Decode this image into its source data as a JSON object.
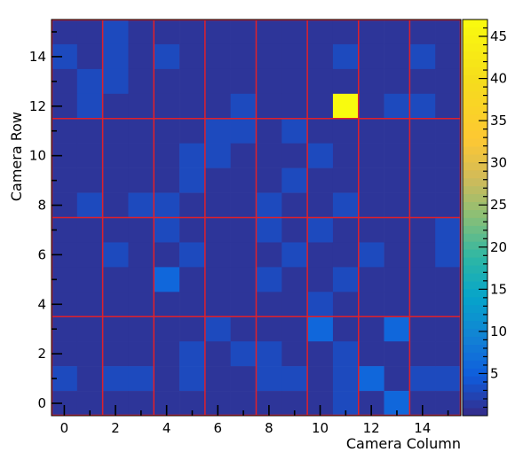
{
  "chart_data": {
    "type": "heatmap",
    "xlabel": "Camera Column",
    "ylabel": "Camera Row",
    "x_ticks": [
      0,
      2,
      4,
      6,
      8,
      10,
      12,
      14
    ],
    "y_ticks": [
      0,
      2,
      4,
      6,
      8,
      10,
      12,
      14
    ],
    "xlim": [
      -0.5,
      15.5
    ],
    "ylim": [
      -0.5,
      15.5
    ],
    "zlim": [
      0,
      47
    ],
    "z_ticks": [
      5,
      10,
      15,
      20,
      25,
      30,
      35,
      40,
      45
    ],
    "colormap": "parula",
    "grid": "red lines every 2 columns and every 4 rows",
    "grid_color": "#e0202a",
    "rows_top_to_bottom": [
      [
        1,
        1,
        3,
        1,
        1,
        1,
        1,
        1,
        1,
        1,
        1,
        1,
        1,
        1,
        1,
        1
      ],
      [
        3,
        1,
        3,
        1,
        3,
        1,
        1,
        1,
        1,
        1,
        1,
        3,
        1,
        1,
        3,
        1
      ],
      [
        1,
        3,
        3,
        1,
        1,
        1,
        1,
        1,
        1,
        1,
        1,
        1,
        1,
        1,
        1,
        1
      ],
      [
        1,
        3,
        1,
        1,
        1,
        1,
        1,
        3,
        1,
        1,
        1,
        47,
        1,
        3,
        3,
        1
      ],
      [
        1,
        1,
        1,
        1,
        1,
        1,
        3,
        3,
        1,
        3,
        1,
        1,
        1,
        1,
        1,
        1
      ],
      [
        1,
        1,
        1,
        1,
        1,
        3,
        3,
        1,
        1,
        1,
        3,
        1,
        1,
        1,
        1,
        1
      ],
      [
        1,
        1,
        1,
        1,
        1,
        3,
        1,
        1,
        1,
        3,
        1,
        1,
        1,
        1,
        1,
        1
      ],
      [
        1,
        3,
        1,
        3,
        3,
        1,
        1,
        1,
        3,
        1,
        1,
        3,
        1,
        1,
        1,
        1
      ],
      [
        1,
        1,
        1,
        1,
        3,
        1,
        1,
        1,
        3,
        1,
        3,
        1,
        1,
        1,
        1,
        3
      ],
      [
        1,
        1,
        3,
        1,
        1,
        3,
        1,
        1,
        1,
        3,
        1,
        1,
        3,
        1,
        1,
        3
      ],
      [
        1,
        1,
        1,
        1,
        6,
        1,
        1,
        1,
        3,
        1,
        1,
        3,
        1,
        1,
        1,
        1
      ],
      [
        1,
        1,
        1,
        1,
        1,
        1,
        1,
        1,
        1,
        1,
        3,
        1,
        1,
        1,
        1,
        1
      ],
      [
        1,
        1,
        1,
        1,
        1,
        1,
        3,
        1,
        1,
        1,
        6,
        1,
        1,
        6,
        1,
        1
      ],
      [
        1,
        1,
        1,
        1,
        1,
        3,
        1,
        3,
        3,
        1,
        1,
        3,
        1,
        1,
        1,
        1
      ],
      [
        3,
        1,
        3,
        3,
        1,
        3,
        1,
        1,
        3,
        3,
        1,
        3,
        6,
        1,
        3,
        3
      ],
      [
        1,
        1,
        1,
        1,
        1,
        1,
        1,
        1,
        1,
        1,
        1,
        3,
        1,
        6,
        1,
        1
      ]
    ]
  }
}
